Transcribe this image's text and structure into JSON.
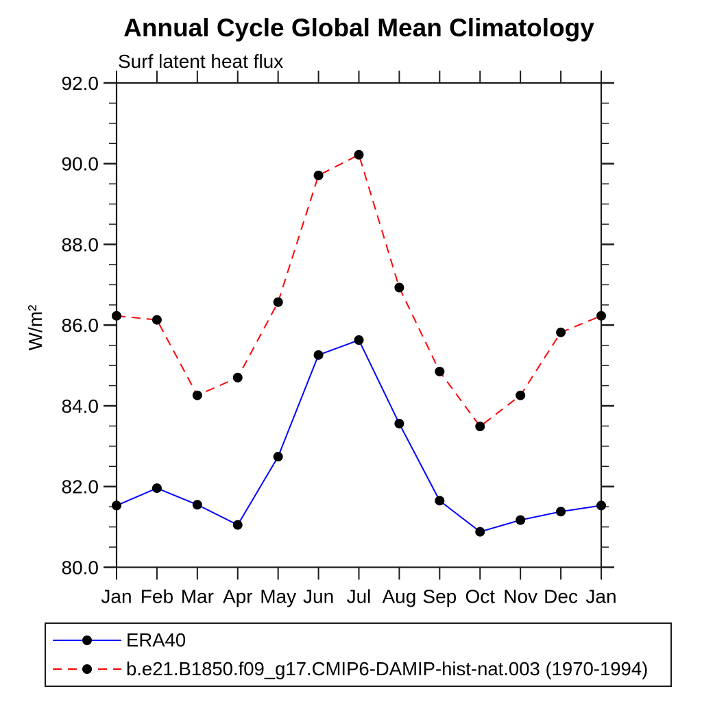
{
  "title": "Annual Cycle Global Mean Climatology",
  "subtitle": "Surf latent heat flux",
  "chart_data": {
    "type": "line",
    "title": "Annual Cycle Global Mean Climatology",
    "subtitle": "Surf latent heat flux",
    "xlabel": "",
    "ylabel": "W/m²",
    "categories": [
      "Jan",
      "Feb",
      "Mar",
      "Apr",
      "May",
      "Jun",
      "Jul",
      "Aug",
      "Sep",
      "Oct",
      "Nov",
      "Dec",
      "Jan"
    ],
    "ylim": [
      80.0,
      92.0
    ],
    "ytick_step": 2.0,
    "ytick_minor_step": 0.5,
    "ytick_labels": [
      "80.0",
      "82.0",
      "84.0",
      "86.0",
      "88.0",
      "90.0",
      "92.0"
    ],
    "grid": false,
    "legend_position": "bottom-left-box",
    "marker": "filled-circle",
    "marker_color": "#000000",
    "series": [
      {
        "name": "ERA40",
        "color": "#0000ff",
        "style": "solid",
        "values": [
          81.53,
          81.96,
          81.55,
          81.05,
          82.74,
          85.26,
          85.63,
          83.56,
          81.65,
          80.88,
          81.17,
          81.38,
          81.53
        ]
      },
      {
        "name": "b.e21.B1850.f09_g17.CMIP6-DAMIP-hist-nat.003 (1970-1994)",
        "color": "#ff0000",
        "style": "dashed",
        "values": [
          86.23,
          86.13,
          84.26,
          84.7,
          86.57,
          89.71,
          90.22,
          86.93,
          84.85,
          83.49,
          84.26,
          85.82,
          86.23
        ]
      }
    ]
  }
}
